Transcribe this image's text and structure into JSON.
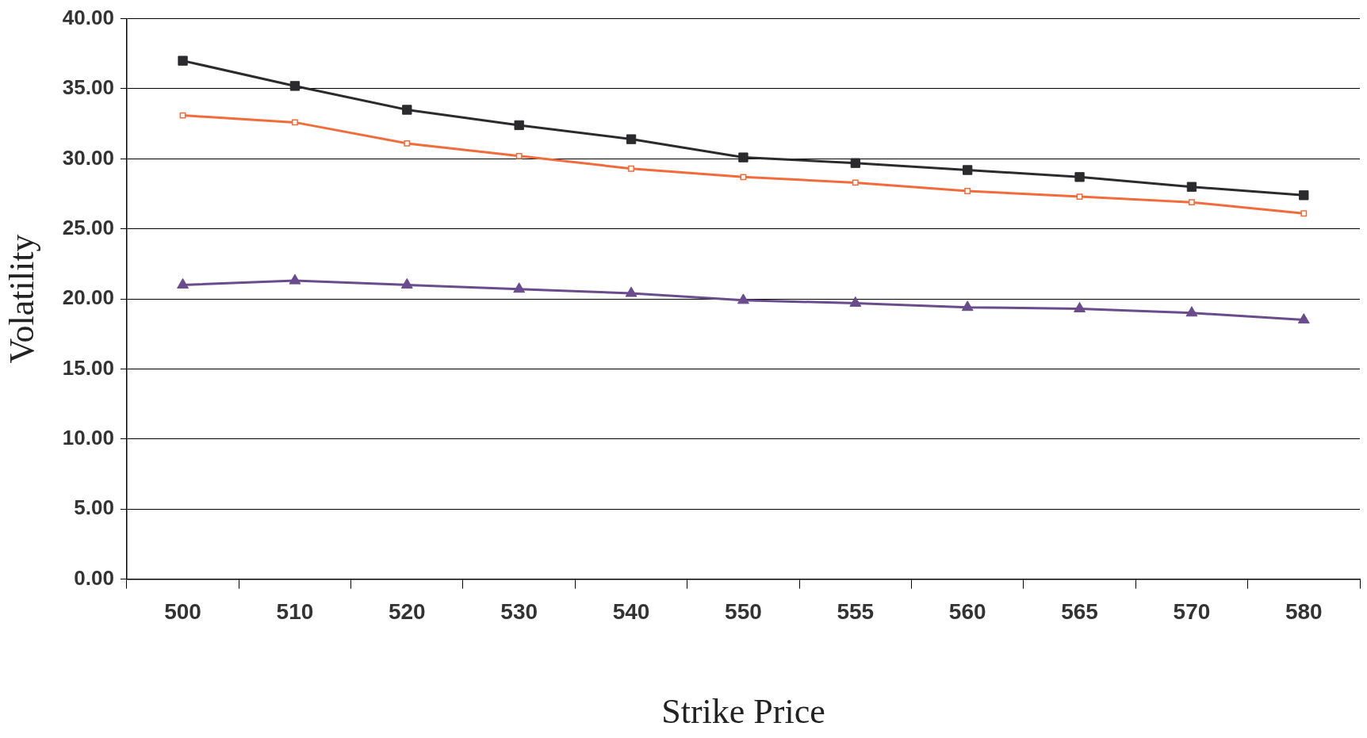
{
  "chart_data": {
    "type": "line",
    "xlabel": "Strike Price",
    "ylabel": "Volatility",
    "categories": [
      "500",
      "510",
      "520",
      "530",
      "540",
      "550",
      "555",
      "560",
      "565",
      "570",
      "580"
    ],
    "ylim": [
      0,
      40
    ],
    "yticks": [
      {
        "value": 0,
        "label": "0.00"
      },
      {
        "value": 5,
        "label": "5.00"
      },
      {
        "value": 10,
        "label": "10.00"
      },
      {
        "value": 15,
        "label": "15.00"
      },
      {
        "value": 20,
        "label": "20.00"
      },
      {
        "value": 25,
        "label": "25.00"
      },
      {
        "value": 30,
        "label": "30.00"
      },
      {
        "value": 35,
        "label": "35.00"
      },
      {
        "value": 40,
        "label": "40.00"
      }
    ],
    "grid": "y",
    "series": [
      {
        "color": "#2b2b2e",
        "marker": "square",
        "values": [
          37.0,
          35.2,
          33.5,
          32.4,
          31.4,
          30.1,
          29.7,
          29.2,
          28.7,
          28.0,
          27.4
        ]
      },
      {
        "color": "#f26b3a",
        "marker": "square",
        "values": [
          33.1,
          32.6,
          31.1,
          30.2,
          29.3,
          28.7,
          28.3,
          27.7,
          27.3,
          26.9,
          26.1
        ]
      },
      {
        "color": "#6a4c8c",
        "marker": "triangle",
        "values": [
          21.0,
          21.3,
          21.0,
          20.7,
          20.4,
          19.9,
          19.7,
          19.4,
          19.3,
          19.0,
          18.5
        ]
      }
    ]
  }
}
